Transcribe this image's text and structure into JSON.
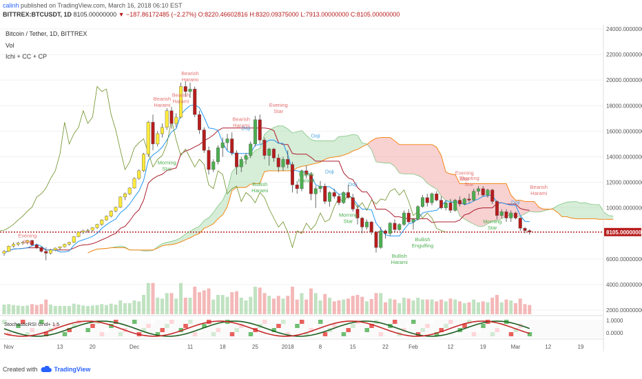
{
  "header": {
    "author": "calinh",
    "published_text": "published on TradingView.com, March 16, 2018 06:10 EST",
    "symbol": "BITTREX:BTCUSDT, 1D",
    "last": "8105.00000000",
    "change": "▼ −187.86172485 (−2.27%)",
    "ohlc": "O:8220.46602816 H:8320.09375000 L:7913.00000000 C:8105.00000000"
  },
  "legend": {
    "title": "Bitcoin / Tether, 1D, BITTREX",
    "vol": "Vol",
    "ichi": "Ichi + CC + CP"
  },
  "footer": {
    "created_with": "Created with",
    "brand": "TradingView"
  },
  "colors": {
    "up": "#ffeb3b",
    "up_green": "#4caf50",
    "down": "#b71c1c",
    "doji": "#9e9e9e",
    "tenkan": "#2196f3",
    "kijun": "#ab1c2c",
    "chikou": "#6b8e23",
    "span_b": "#f57c00",
    "cloud_green": "#a5d6a7",
    "cloud_red": "#ef9a9a"
  },
  "chart_data": {
    "type": "candlestick",
    "price_axis": {
      "min": 2000,
      "max": 24000,
      "ticks": [
        "24000.00000000",
        "22000.00000000",
        "20000.00000000",
        "18000.00000000",
        "16000.00000000",
        "14000.00000000",
        "12000.00000000",
        "10000.00000000",
        "8105.00000000",
        "6000.00000000",
        "4000.00000000",
        "2000.00000000"
      ]
    },
    "last_price_label": "8105.00000000",
    "oscillator_ticks": [
      "1.0000",
      "0.0000"
    ],
    "oscillator_label": "StochasticRSI Gnd+ 1 5",
    "x_ticks": [
      "Nov",
      "13",
      "20",
      "Dec",
      "11",
      "18",
      "25",
      "2018",
      "8",
      "15",
      "22",
      "Feb",
      "12",
      "19",
      "Mar",
      "12",
      "19"
    ],
    "annotations": [
      {
        "text": "Evening Star",
        "kind": "bear"
      },
      {
        "text": "Bearish Harami",
        "kind": "bear"
      },
      {
        "text": "Bearish Harami",
        "kind": "bear"
      },
      {
        "text": "Bearish Harami",
        "kind": "bear"
      },
      {
        "text": "Morning Star",
        "kind": "bull"
      },
      {
        "text": "Bearish Harami",
        "kind": "bear"
      },
      {
        "text": "Doji",
        "kind": "doji"
      },
      {
        "text": "Evening Star",
        "kind": "bear"
      },
      {
        "text": "Doji",
        "kind": "doji"
      },
      {
        "text": "Bullish Harami",
        "kind": "bull"
      },
      {
        "text": "Bullish Harami",
        "kind": "bull"
      },
      {
        "text": "Doji",
        "kind": "doji"
      },
      {
        "text": "Doji",
        "kind": "doji"
      },
      {
        "text": "Morning Star",
        "kind": "bull"
      },
      {
        "text": "Bullish Harami",
        "kind": "bull"
      },
      {
        "text": "Bullish Engulfing",
        "kind": "bull"
      },
      {
        "text": "Evening Star",
        "kind": "bear"
      },
      {
        "text": "Shooting Star",
        "kind": "bear"
      },
      {
        "text": "Doji",
        "kind": "doji"
      },
      {
        "text": "Morning Star",
        "kind": "bull"
      },
      {
        "text": "Bearish Harami",
        "kind": "bear"
      }
    ],
    "candles": [
      [
        6450,
        6700,
        6250,
        6600
      ],
      [
        6600,
        7050,
        6550,
        7000
      ],
      [
        7000,
        7300,
        6900,
        7150
      ],
      [
        7150,
        7350,
        7000,
        7250
      ],
      [
        7250,
        7400,
        7100,
        7300
      ],
      [
        7300,
        7500,
        7150,
        7450
      ],
      [
        7450,
        7500,
        7000,
        7100
      ],
      [
        7100,
        7200,
        6800,
        6900
      ],
      [
        6900,
        7000,
        6500,
        6600
      ],
      [
        6600,
        6900,
        5900,
        6450
      ],
      [
        6450,
        6800,
        6350,
        6700
      ],
      [
        6700,
        6900,
        6600,
        6850
      ],
      [
        6850,
        7000,
        6700,
        6950
      ],
      [
        6950,
        7200,
        6900,
        7150
      ],
      [
        7150,
        7350,
        7050,
        7300
      ],
      [
        7300,
        7800,
        7250,
        7750
      ],
      [
        7750,
        8150,
        7700,
        8100
      ],
      [
        8100,
        8300,
        7950,
        8200
      ],
      [
        8200,
        8350,
        8050,
        8250
      ],
      [
        8250,
        8500,
        8150,
        8450
      ],
      [
        8450,
        8750,
        8350,
        8700
      ],
      [
        8700,
        9100,
        8600,
        9050
      ],
      [
        9050,
        9400,
        9000,
        9350
      ],
      [
        9350,
        9800,
        9250,
        9750
      ],
      [
        9750,
        10100,
        9650,
        10050
      ],
      [
        10050,
        10900,
        10000,
        10850
      ],
      [
        10850,
        11200,
        10600,
        11100
      ],
      [
        11100,
        11600,
        11000,
        11550
      ],
      [
        11550,
        12400,
        11500,
        12300
      ],
      [
        12300,
        13000,
        12200,
        12900
      ],
      [
        12900,
        14300,
        12800,
        14200
      ],
      [
        14200,
        16800,
        14000,
        16700
      ],
      [
        16700,
        17300,
        14500,
        15000
      ],
      [
        15000,
        16000,
        14800,
        15800
      ],
      [
        15800,
        16600,
        15500,
        16300
      ],
      [
        16300,
        17800,
        16100,
        17600
      ],
      [
        17600,
        17900,
        16200,
        16600
      ],
      [
        16600,
        17400,
        16300,
        17100
      ],
      [
        17100,
        19800,
        17000,
        19500
      ],
      [
        19500,
        19900,
        18700,
        19100
      ],
      [
        19100,
        19800,
        18600,
        19300
      ],
      [
        19300,
        19500,
        17100,
        17300
      ],
      [
        17300,
        17600,
        15800,
        16100
      ],
      [
        16100,
        16300,
        14300,
        14500
      ],
      [
        14500,
        14800,
        12600,
        13000
      ],
      [
        13000,
        13800,
        12800,
        13600
      ],
      [
        13600,
        14900,
        13400,
        14700
      ],
      [
        14700,
        15500,
        14000,
        15100
      ],
      [
        15100,
        15800,
        14500,
        15400
      ],
      [
        15400,
        15900,
        14100,
        14300
      ],
      [
        14300,
        14500,
        12600,
        13200
      ],
      [
        13200,
        14000,
        12800,
        13800
      ],
      [
        13800,
        14300,
        13400,
        14100
      ],
      [
        14100,
        15200,
        13900,
        15000
      ],
      [
        15000,
        17200,
        14800,
        16900
      ],
      [
        16900,
        17300,
        15000,
        15300
      ],
      [
        15300,
        15500,
        13800,
        14100
      ],
      [
        14100,
        14700,
        13300,
        14600
      ],
      [
        14600,
        14700,
        13600,
        13900
      ],
      [
        13900,
        14200,
        12800,
        13200
      ],
      [
        13200,
        14000,
        12900,
        13800
      ],
      [
        13800,
        14500,
        13100,
        13400
      ],
      [
        13400,
        13600,
        11200,
        11800
      ],
      [
        11800,
        12100,
        11100,
        11500
      ],
      [
        11500,
        13000,
        11300,
        12900
      ],
      [
        12900,
        13300,
        12300,
        12600
      ],
      [
        12600,
        12800,
        10600,
        11100
      ],
      [
        11100,
        11700,
        10000,
        11500
      ],
      [
        11500,
        12100,
        11200,
        11700
      ],
      [
        11700,
        11900,
        10300,
        10500
      ],
      [
        10500,
        11300,
        10100,
        11200
      ],
      [
        11200,
        11500,
        10700,
        10900
      ],
      [
        10900,
        11100,
        10200,
        10400
      ],
      [
        10400,
        11300,
        10300,
        11200
      ],
      [
        11200,
        11800,
        10700,
        10800
      ],
      [
        10800,
        11100,
        9700,
        9900
      ],
      [
        9900,
        10200,
        8700,
        9200
      ],
      [
        9200,
        9300,
        8000,
        8500
      ],
      [
        8500,
        9100,
        8300,
        8900
      ],
      [
        8900,
        8950,
        7900,
        8100
      ],
      [
        8100,
        8200,
        6500,
        6900
      ],
      [
        6900,
        8500,
        6800,
        8200
      ],
      [
        8200,
        8300,
        7600,
        8000
      ],
      [
        8000,
        8900,
        7800,
        8800
      ],
      [
        8800,
        9100,
        8100,
        8300
      ],
      [
        8300,
        8800,
        8200,
        8700
      ],
      [
        8700,
        9800,
        8600,
        9600
      ],
      [
        9600,
        9900,
        8800,
        8900
      ],
      [
        8900,
        9200,
        8300,
        9100
      ],
      [
        9100,
        10200,
        9000,
        10100
      ],
      [
        10100,
        11000,
        10000,
        10800
      ],
      [
        10800,
        11100,
        10100,
        10400
      ],
      [
        10400,
        11200,
        10200,
        11100
      ],
      [
        11100,
        11300,
        10500,
        10600
      ],
      [
        10600,
        10900,
        9900,
        10000
      ],
      [
        10000,
        10600,
        9800,
        10400
      ],
      [
        10400,
        10700,
        9600,
        9800
      ],
      [
        9800,
        10700,
        9700,
        10600
      ],
      [
        10600,
        10900,
        10100,
        10300
      ],
      [
        10300,
        10800,
        10200,
        10700
      ],
      [
        10700,
        11100,
        10400,
        10600
      ],
      [
        10600,
        11500,
        10500,
        11300
      ],
      [
        11300,
        11700,
        11000,
        11500
      ],
      [
        11500,
        11700,
        10900,
        11000
      ],
      [
        11000,
        11500,
        10800,
        11400
      ],
      [
        11400,
        11500,
        10300,
        10500
      ],
      [
        10500,
        10600,
        9100,
        9400
      ],
      [
        9400,
        9900,
        9200,
        9700
      ],
      [
        9700,
        9900,
        8900,
        9200
      ],
      [
        9200,
        9800,
        8900,
        9600
      ],
      [
        9600,
        9700,
        9100,
        9200
      ],
      [
        9200,
        9300,
        8200,
        8400
      ],
      [
        8400,
        8500,
        8000,
        8220
      ],
      [
        8220,
        8320,
        7913,
        8105
      ]
    ]
  }
}
